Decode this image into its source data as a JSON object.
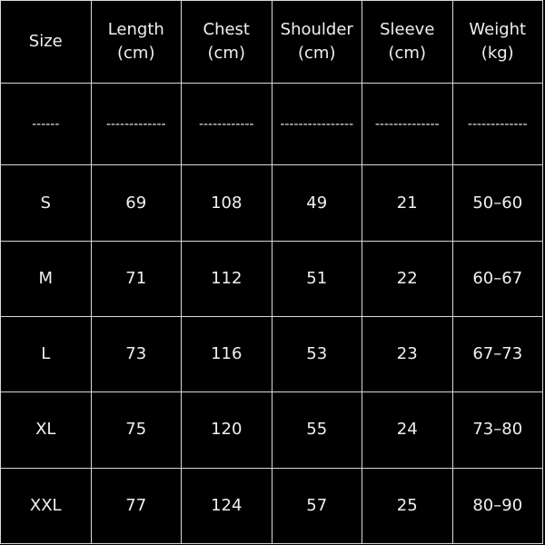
{
  "table": {
    "header": [
      {
        "name": "Size"
      },
      {
        "name": "Length",
        "unit": "(cm)"
      },
      {
        "name": "Chest",
        "unit": "(cm)"
      },
      {
        "name": "Shoulder",
        "unit": "(cm)"
      },
      {
        "name": "Sleeve",
        "unit": "(cm)"
      },
      {
        "name": "Weight",
        "unit": "(kg)"
      }
    ],
    "rows": [
      [
        "------",
        "-------------",
        "------------",
        "----------------",
        "--------------",
        "-------------"
      ],
      [
        "S",
        69,
        108,
        49,
        21,
        "50–60"
      ],
      [
        "M",
        71,
        112,
        51,
        22,
        "60–67"
      ],
      [
        "L",
        73,
        116,
        53,
        23,
        "67–73"
      ],
      [
        "XL",
        75,
        120,
        55,
        24,
        "73–80"
      ],
      [
        "XXL",
        77,
        124,
        57,
        25,
        "80–90"
      ]
    ]
  }
}
